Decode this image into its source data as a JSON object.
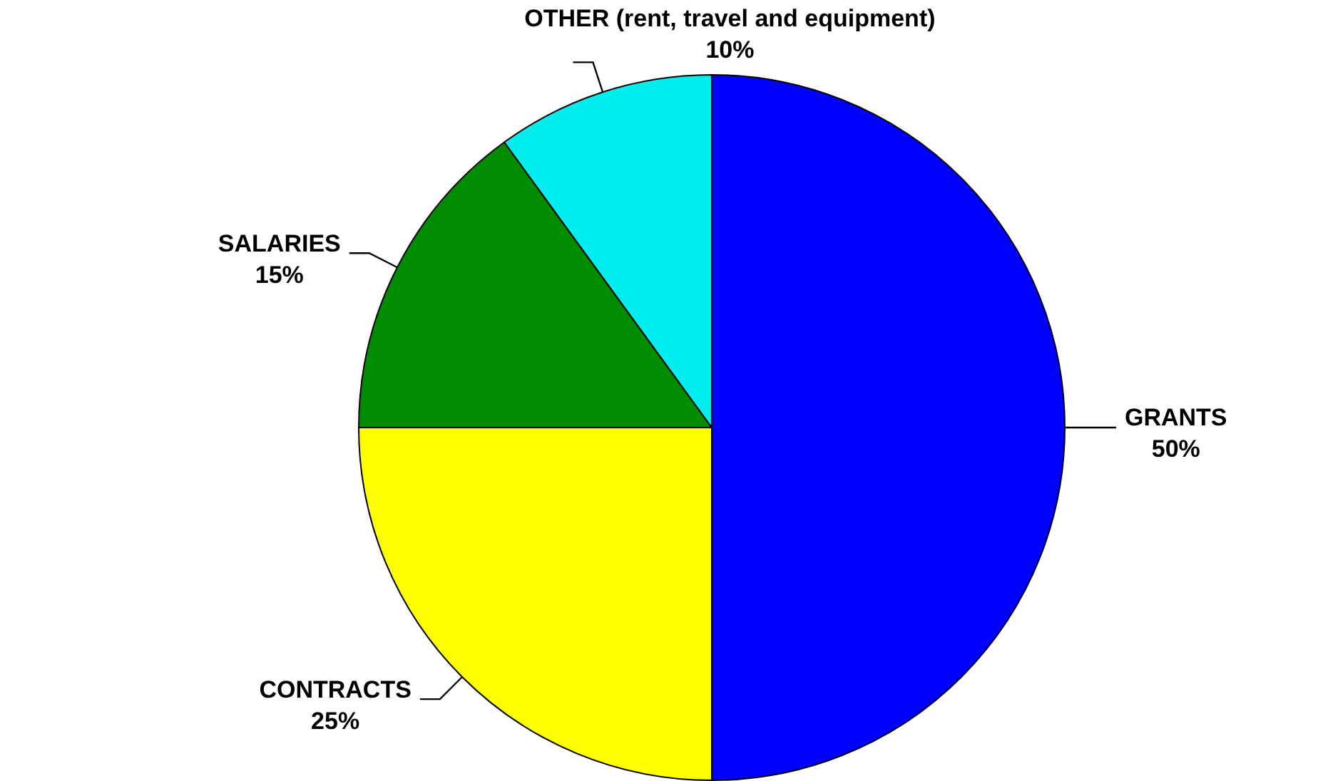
{
  "chart_data": {
    "type": "pie",
    "categories": [
      "GRANTS",
      "CONTRACTS",
      "SALARIES",
      "OTHER (rent, travel and equipment)"
    ],
    "values": [
      50,
      25,
      15,
      10
    ],
    "value_labels": [
      "50%",
      "25%",
      "15%",
      "10%"
    ],
    "colors": [
      "#0000ff",
      "#ffff00",
      "#008c00",
      "#00eeee"
    ],
    "legend": false
  }
}
